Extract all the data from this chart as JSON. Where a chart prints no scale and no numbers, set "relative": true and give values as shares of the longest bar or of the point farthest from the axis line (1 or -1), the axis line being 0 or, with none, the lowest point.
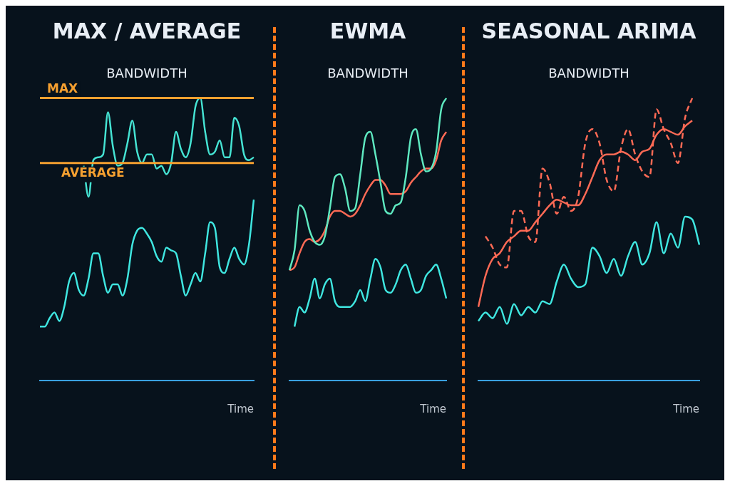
{
  "chart_data": [
    {
      "type": "line",
      "title": "MAX / AVERAGE",
      "subtitle": "BANDWIDTH",
      "xlabel": "Time",
      "relative": true,
      "categories": [
        null,
        null,
        null,
        null,
        null,
        null,
        null,
        null,
        null,
        null,
        null,
        null,
        null,
        null,
        null,
        null,
        null,
        null,
        null,
        null,
        null,
        null,
        null,
        null,
        null,
        null,
        null,
        null,
        null,
        null,
        null,
        null,
        null,
        null,
        null,
        null,
        null,
        null,
        null,
        null,
        null,
        null,
        null,
        null,
        null
      ],
      "series": [
        {
          "color": "#45e3d3",
          "values": [
            null,
            null,
            null,
            null,
            null,
            null,
            null,
            null,
            null,
            0.76,
            0.65,
            0.78,
            0.79,
            0.8,
            0.95,
            0.83,
            0.76,
            0.77,
            0.84,
            0.92,
            0.81,
            0.77,
            0.8,
            0.8,
            0.75,
            0.76,
            0.73,
            0.77,
            0.88,
            0.82,
            0.79,
            0.84,
            0.97,
            1.0,
            0.88,
            0.8,
            0.81,
            0.85,
            0.79,
            0.79,
            0.93,
            0.9,
            0.8,
            0.78,
            0.79
          ]
        },
        {
          "color": "#3fe6e0",
          "values": [
            0.19,
            0.19,
            0.22,
            0.24,
            0.21,
            0.26,
            0.35,
            0.38,
            0.32,
            0.3,
            0.36,
            0.45,
            0.45,
            0.37,
            0.31,
            0.34,
            0.34,
            0.3,
            0.36,
            0.48,
            0.53,
            0.54,
            0.52,
            0.49,
            0.44,
            0.42,
            0.47,
            0.46,
            0.45,
            0.37,
            0.3,
            0.34,
            0.38,
            0.35,
            0.45,
            0.56,
            0.54,
            0.4,
            0.38,
            0.43,
            0.47,
            0.43,
            0.41,
            0.48,
            0.64
          ]
        }
      ],
      "ref_lines": [
        {
          "axis": "y",
          "value": 1.0,
          "label": "MAX",
          "color": "#f5a030"
        },
        {
          "axis": "y",
          "value": 0.77,
          "label": "AVERAGE",
          "color": "#f5a030"
        }
      ]
    },
    {
      "type": "line",
      "title": "EWMA",
      "subtitle": "BANDWIDTH",
      "xlabel": "Time",
      "relative": true,
      "categories": [
        null,
        null,
        null,
        null,
        null,
        null,
        null,
        null,
        null,
        null,
        null,
        null,
        null,
        null,
        null,
        null,
        null,
        null,
        null,
        null,
        null,
        null,
        null,
        null,
        null,
        null,
        null,
        null,
        null,
        null,
        null,
        null
      ],
      "series": [
        {
          "color": "#5ee8c0",
          "values": [
            0.39,
            0.46,
            0.62,
            0.6,
            0.53,
            0.49,
            0.48,
            0.51,
            0.61,
            0.72,
            0.73,
            0.68,
            0.6,
            0.61,
            0.73,
            0.86,
            0.88,
            0.8,
            0.7,
            0.6,
            0.59,
            0.62,
            0.63,
            0.72,
            0.86,
            0.89,
            0.8,
            0.74,
            0.75,
            0.81,
            0.96,
            1.0
          ]
        },
        {
          "color": "#ff6a55",
          "values": [
            0.39,
            0.4,
            0.45,
            0.49,
            0.5,
            0.49,
            0.5,
            0.53,
            0.58,
            0.6,
            0.6,
            0.59,
            0.58,
            0.59,
            0.62,
            0.66,
            0.69,
            0.71,
            0.71,
            0.69,
            0.66,
            0.66,
            0.66,
            0.67,
            0.7,
            0.72,
            0.74,
            0.75,
            0.75,
            0.78,
            0.85,
            0.88
          ]
        },
        {
          "color": "#3fe6e0",
          "values": [
            null,
            0.19,
            0.26,
            0.24,
            0.29,
            0.36,
            0.29,
            0.34,
            0.36,
            0.28,
            0.26,
            0.26,
            0.26,
            0.28,
            0.32,
            0.28,
            0.36,
            0.43,
            0.4,
            0.32,
            0.31,
            0.34,
            0.39,
            0.41,
            0.36,
            0.31,
            0.32,
            0.37,
            0.39,
            0.41,
            0.36,
            0.29
          ]
        }
      ]
    },
    {
      "type": "line",
      "title": "SEASONAL ARIMA",
      "subtitle": "BANDWIDTH",
      "xlabel": "Time",
      "relative": true,
      "categories": [
        null,
        null,
        null,
        null,
        null,
        null,
        null,
        null,
        null,
        null,
        null,
        null,
        null,
        null,
        null,
        null,
        null,
        null,
        null,
        null,
        null,
        null,
        null,
        null,
        null,
        null,
        null,
        null,
        null,
        null,
        null,
        null
      ],
      "series": [
        {
          "color": "#ff6a55",
          "line_style": "dashed",
          "values": [
            null,
            0.51,
            0.47,
            0.41,
            0.4,
            0.6,
            0.6,
            0.51,
            0.49,
            0.75,
            0.7,
            0.59,
            0.65,
            0.6,
            0.65,
            0.84,
            0.89,
            0.84,
            0.71,
            0.67,
            0.82,
            0.89,
            0.8,
            0.74,
            0.72,
            0.96,
            0.89,
            0.84,
            0.77,
            0.93,
            1.0,
            null
          ]
        },
        {
          "color": "#ff6a55",
          "line_style": "solid",
          "values": [
            0.26,
            0.37,
            0.43,
            0.45,
            0.49,
            0.51,
            0.53,
            0.53,
            0.56,
            0.59,
            0.62,
            0.64,
            0.63,
            0.62,
            0.62,
            0.66,
            0.72,
            0.78,
            0.8,
            0.8,
            0.81,
            0.8,
            0.78,
            0.81,
            0.82,
            0.87,
            0.89,
            0.88,
            0.87,
            0.9,
            0.92,
            null
          ]
        },
        {
          "color": "#3fe6e0",
          "line_style": "solid",
          "values": [
            0.21,
            0.24,
            0.22,
            0.26,
            0.2,
            0.27,
            0.23,
            0.26,
            0.24,
            0.28,
            0.27,
            0.35,
            0.41,
            0.36,
            0.33,
            0.34,
            0.47,
            0.44,
            0.38,
            0.43,
            0.37,
            0.44,
            0.49,
            0.41,
            0.45,
            0.56,
            0.45,
            0.52,
            0.47,
            0.58,
            0.57,
            0.48
          ]
        }
      ]
    }
  ]
}
